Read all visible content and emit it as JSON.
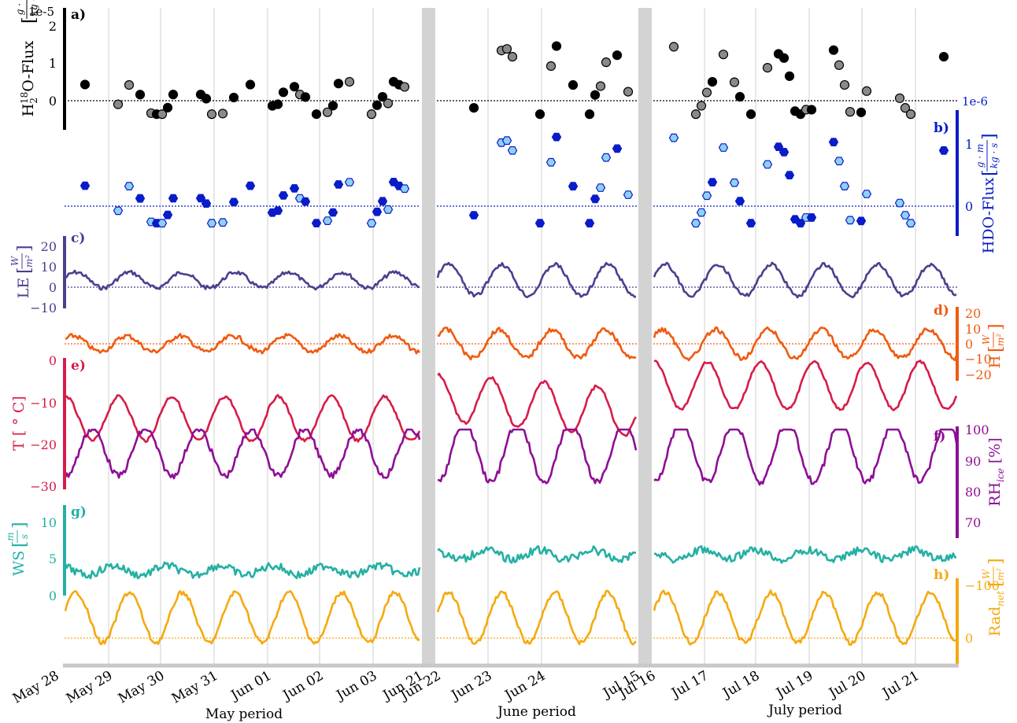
{
  "chart_data": {
    "type": "line",
    "periods": [
      {
        "label": "May period",
        "ticks": [
          "May 28",
          "May 29",
          "May 30",
          "May 31",
          "Jun 01",
          "Jun 02",
          "Jun 03",
          "Jun 21"
        ]
      },
      {
        "label": "June period",
        "ticks": [
          "Jun 22",
          "Jun 23",
          "Jun 24",
          "Jul 15"
        ]
      },
      {
        "label": "July period",
        "ticks": [
          "Jul 16",
          "Jul 17",
          "Jul 18",
          "Jul 19",
          "Jul 20",
          "Jul 21"
        ]
      }
    ],
    "panels": [
      {
        "letter": "a)",
        "ylabel_main": "H",
        "ylabel_sub": "2",
        "ylabel_sup": "18",
        "ylabel_rest": "O-Flux",
        "unit_num": "g · m",
        "unit_den": "kg · s",
        "scale": "1e-5",
        "ticks": [
          "2",
          "1",
          "0"
        ],
        "ylim": [
          -0.5,
          2.2
        ],
        "color": "#000000",
        "marker": "circle",
        "fill_a": "#000000",
        "fill_b": "#8a8a8a",
        "side": "left"
      },
      {
        "letter": "b)",
        "ylabel_rest": "HDO-Flux",
        "unit_num": "g · m",
        "unit_den": "kg · s",
        "scale": "1e-6",
        "ticks": [
          "1",
          "0"
        ],
        "ylim": [
          -0.3,
          1.3
        ],
        "color": "#0a1cc8",
        "marker": "hexagon",
        "fill_a": "#0a1cc8",
        "fill_b": "#8fd0f5",
        "side": "right"
      },
      {
        "letter": "c)",
        "ylabel_rest": "LE",
        "unit_num": "W",
        "unit_den": "m²",
        "ticks": [
          "20",
          "10",
          "0",
          "−10"
        ],
        "ylim": [
          -10,
          25
        ],
        "color": "#4b3f8f",
        "side": "left"
      },
      {
        "letter": "d)",
        "ylabel_rest": "H",
        "unit_num": "W",
        "unit_den": "m²",
        "ticks": [
          "20",
          "10",
          "0",
          "−10",
          "−20"
        ],
        "ylim": [
          -25,
          25
        ],
        "color": "#f05a10",
        "side": "right"
      },
      {
        "letter": "e)",
        "ylabel_rest": "T [ ° C]",
        "ticks": [
          "0",
          "−10",
          "−20",
          "−30"
        ],
        "ylim": [
          -30,
          0
        ],
        "color": "#d81b47",
        "side": "left"
      },
      {
        "letter": "f)",
        "ylabel_rest": "RH",
        "ylabel_sub": "ice",
        "ylabel_tail": " [%]",
        "ticks": [
          "100",
          "90",
          "80",
          "70"
        ],
        "ylim": [
          65,
          100
        ],
        "color": "#8e0e95",
        "side": "right"
      },
      {
        "letter": "g)",
        "ylabel_rest": "WS",
        "unit_num": "m",
        "unit_den": "s",
        "ticks": [
          "10",
          "5",
          "0"
        ],
        "ylim": [
          0,
          12
        ],
        "color": "#24b0a4",
        "side": "left"
      },
      {
        "letter": "h)",
        "ylabel_rest": "Rad",
        "ylabel_sub": "net",
        "unit_num": "W",
        "unit_den": "m²",
        "ticks": [
          "−100",
          "0"
        ],
        "ylim": [
          -130,
          20
        ],
        "color": "#f5a910",
        "side": "right"
      }
    ]
  }
}
